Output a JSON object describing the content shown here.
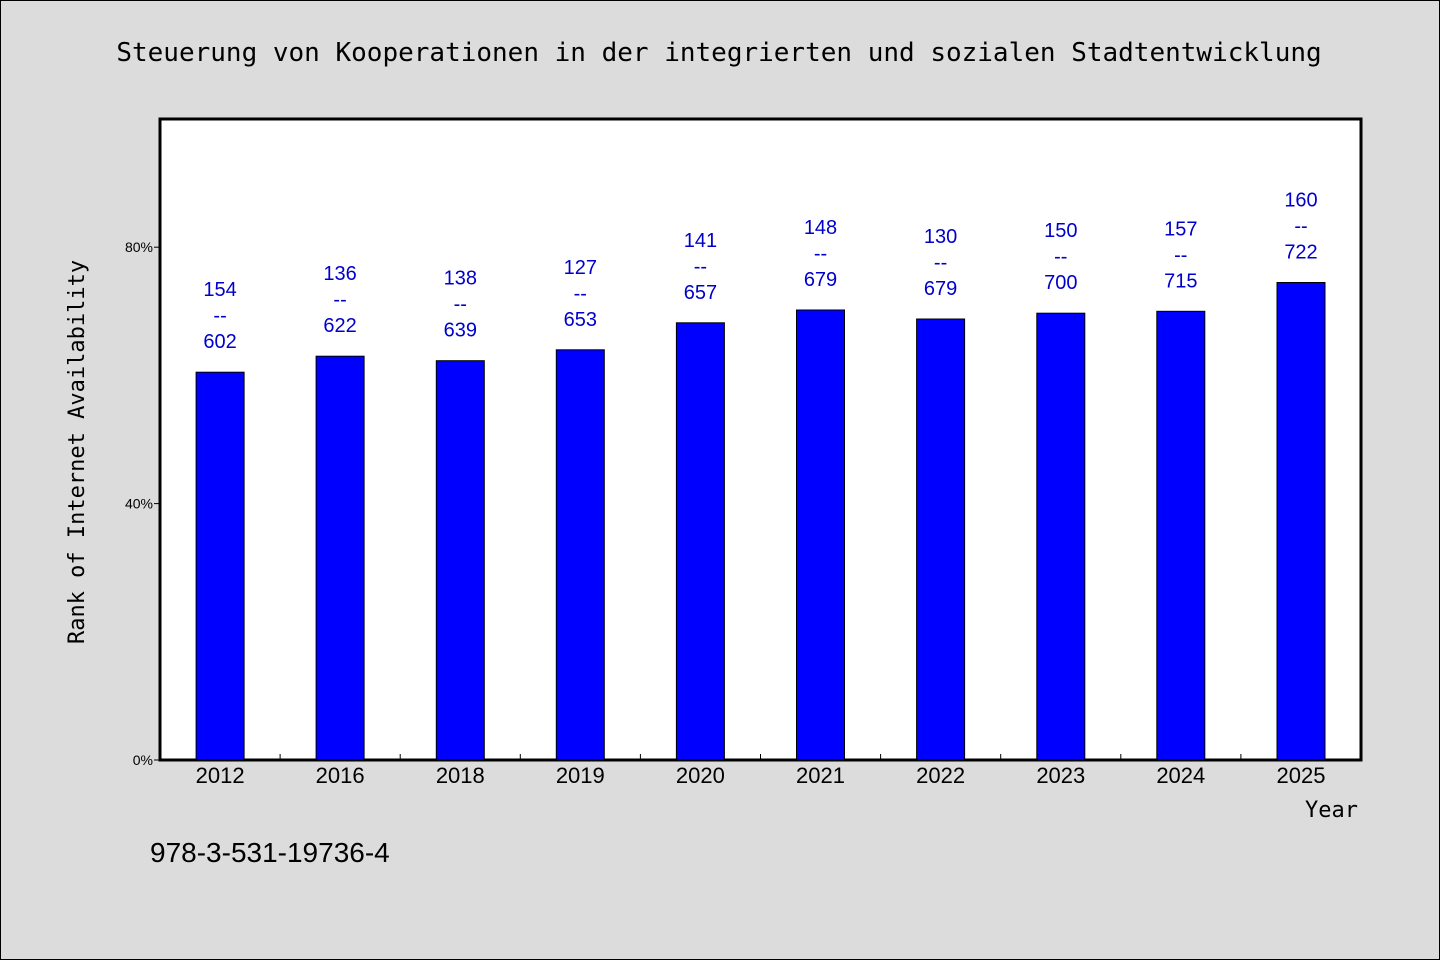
{
  "chart_data": {
    "type": "bar",
    "title": "Steuerung von Kooperationen in der integrierten und sozialen Stadtentwicklung",
    "xlabel": "Year",
    "ylabel": "Rank of Internet Availability",
    "categories": [
      "2012",
      "2016",
      "2018",
      "2019",
      "2020",
      "2021",
      "2022",
      "2023",
      "2024",
      "2025"
    ],
    "values": [
      60.5,
      63.0,
      62.3,
      64.0,
      68.2,
      70.2,
      68.8,
      69.7,
      70.0,
      74.5
    ],
    "labels_top": [
      "154",
      "136",
      "138",
      "127",
      "141",
      "148",
      "130",
      "150",
      "157",
      "160"
    ],
    "labels_bottom": [
      "602",
      "622",
      "639",
      "653",
      "657",
      "679",
      "679",
      "700",
      "715",
      "722"
    ],
    "label_separator": "--",
    "ylim": [
      0,
      100
    ],
    "yticks": [
      0,
      40,
      80
    ],
    "ytick_labels": [
      "0%",
      "40%",
      "80%"
    ],
    "bar_color": "#0000ff",
    "label_color": "#0000cc",
    "grid": false,
    "legend": "none"
  },
  "footnote": "978-3-531-19736-4"
}
